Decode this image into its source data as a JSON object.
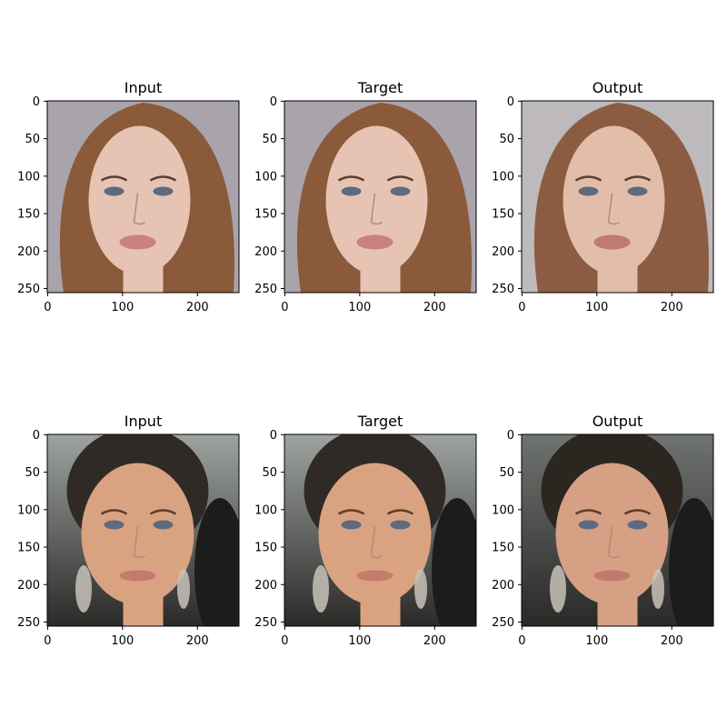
{
  "figure": {
    "background": "#ffffff",
    "panels": [
      {
        "title": "Input",
        "row": 0,
        "col": 0,
        "image": {
          "description": "portrait of woman with long light-brown hair on grey background",
          "bg": "#a9a3ab",
          "hair": "#8a5a3a",
          "skin": "#e6c3b3",
          "lips": "#c9817d"
        },
        "xticks": [
          "0",
          "100",
          "200"
        ],
        "yticks": [
          "0",
          "50",
          "100",
          "150",
          "200",
          "250"
        ]
      },
      {
        "title": "Target",
        "row": 0,
        "col": 1,
        "image": {
          "description": "portrait of woman with long light-brown hair on grey background",
          "bg": "#a9a3ab",
          "hair": "#8a5a3a",
          "skin": "#e6c3b3",
          "lips": "#c9817d"
        },
        "xticks": [
          "0",
          "100",
          "200"
        ],
        "yticks": [
          "0",
          "50",
          "100",
          "150",
          "200",
          "250"
        ]
      },
      {
        "title": "Output",
        "row": 0,
        "col": 2,
        "image": {
          "description": "generated smoother portrait of woman with brown hair",
          "bg": "#bdb9bc",
          "hair": "#8c5c42",
          "skin": "#e2bdaa",
          "lips": "#c07a72"
        },
        "xticks": [
          "0",
          "100",
          "200"
        ],
        "yticks": [
          "0",
          "50",
          "100",
          "150",
          "200",
          "250"
        ]
      },
      {
        "title": "Input",
        "row": 1,
        "col": 0,
        "image": {
          "description": "portrait of woman with dark slicked-back hair and chandelier earrings",
          "bg": "#9ea3a0",
          "hair": "#2f2a26",
          "skin": "#d9a381",
          "lips": "#c57a6e"
        },
        "xticks": [
          "0",
          "100",
          "200"
        ],
        "yticks": [
          "0",
          "50",
          "100",
          "150",
          "200",
          "250"
        ]
      },
      {
        "title": "Target",
        "row": 1,
        "col": 1,
        "image": {
          "description": "portrait of woman with dark slicked-back hair and chandelier earrings",
          "bg": "#9ea3a0",
          "hair": "#2f2a26",
          "skin": "#d9a381",
          "lips": "#c57a6e"
        },
        "xticks": [
          "0",
          "100",
          "200"
        ],
        "yticks": [
          "0",
          "50",
          "100",
          "150",
          "200",
          "250"
        ]
      },
      {
        "title": "Output",
        "row": 1,
        "col": 2,
        "image": {
          "description": "generated portrait of woman with dark hair on darker background",
          "bg": "#6f7370",
          "hair": "#2c2621",
          "skin": "#d5a084",
          "lips": "#c4796d"
        },
        "xticks": [
          "0",
          "100",
          "200"
        ],
        "yticks": [
          "0",
          "50",
          "100",
          "150",
          "200",
          "250"
        ]
      }
    ]
  }
}
